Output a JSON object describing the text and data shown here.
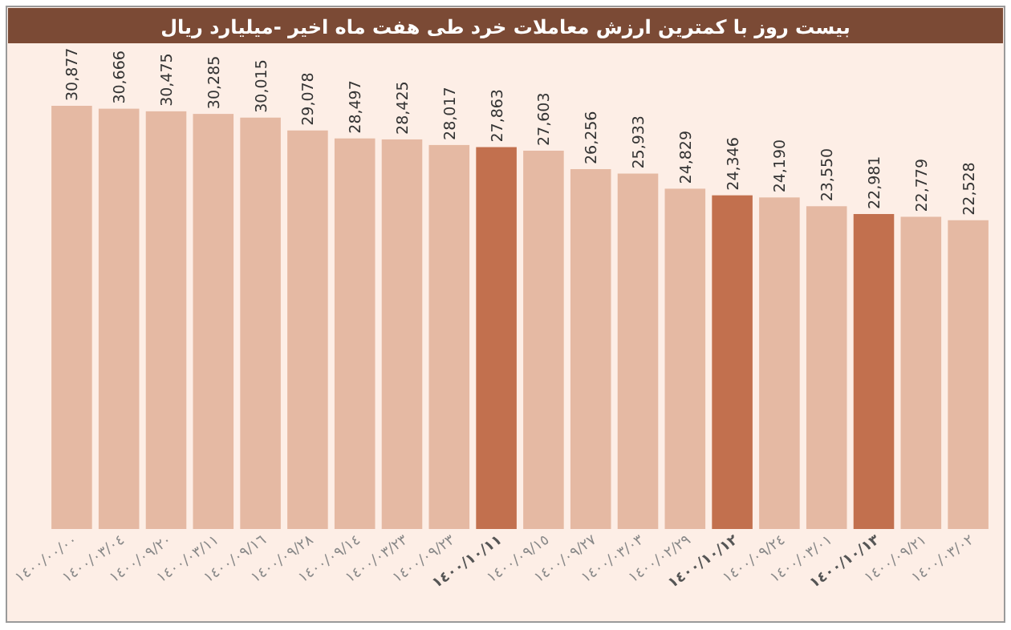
{
  "chart_data": {
    "type": "bar",
    "title": "بیست روز با کمترین ارزش معاملات خرد طی هفت ماه اخیر -میلیارد ریال",
    "categories": [
      "١٤٠٠/٠٠/٠٠",
      "١٤٠٠/٠٣/٠٤",
      "١٤٠٠/٠٩/٢٠",
      "١٤٠٠/٠٣/١١",
      "١٤٠٠/٠٩/١٦",
      "١٤٠٠/٠٩/٢٨",
      "١٤٠٠/٠٩/١٤",
      "١٤٠٠/٠٣/٢٣",
      "١٤٠٠/٠٩/٢٣",
      "١٤٠٠/١٠/١١",
      "١٤٠٠/٠٩/١٥",
      "١٤٠٠/٠٩/٢٧",
      "١٤٠٠/٠٣/٠٣",
      "١٤٠٠/٠٢/٢٩",
      "١٤٠٠/١٠/١٢",
      "١٤٠٠/٠٩/٢٤",
      "١٤٠٠/٠٣/٠١",
      "١٤٠٠/١٠/١٣",
      "١٤٠٠/٠٩/٢١",
      "١٤٠٠/٠٣/٠٢"
    ],
    "values": [
      30877,
      30666,
      30475,
      30285,
      30015,
      29078,
      28497,
      28425,
      28017,
      27863,
      27603,
      26256,
      25933,
      24829,
      24346,
      24190,
      23550,
      22981,
      22779,
      22528
    ],
    "value_labels": [
      "30,877",
      "30,666",
      "30,475",
      "30,285",
      "30,015",
      "29,078",
      "28,497",
      "28,425",
      "28,017",
      "27,863",
      "27,603",
      "26,256",
      "25,933",
      "24,829",
      "24,346",
      "24,190",
      "23,550",
      "22,981",
      "22,779",
      "22,528"
    ],
    "colors": [
      "#e5b9a3",
      "#e5b9a3",
      "#e5b9a3",
      "#e5b9a3",
      "#e5b9a3",
      "#e5b9a3",
      "#e5b9a3",
      "#e5b9a3",
      "#e5b9a3",
      "#c2704e",
      "#e5b9a3",
      "#e5b9a3",
      "#e5b9a3",
      "#e5b9a3",
      "#c2704e",
      "#e5b9a3",
      "#e5b9a3",
      "#c2704e",
      "#e5b9a3",
      "#e5b9a3"
    ]
  }
}
